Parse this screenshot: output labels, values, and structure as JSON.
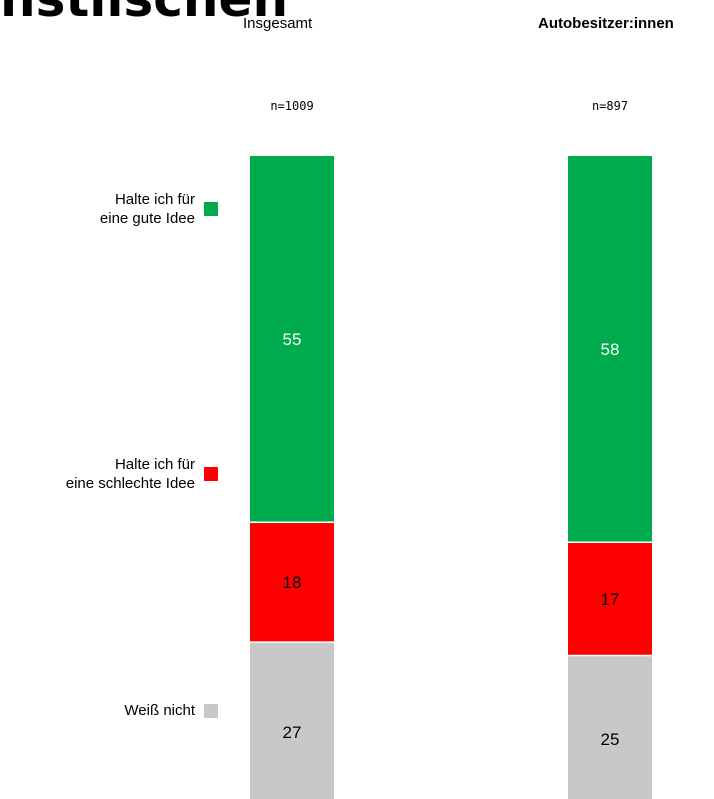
{
  "title": "nstiischen",
  "columns": [
    {
      "heading": "Insgesamt",
      "n": "n=1009"
    },
    {
      "heading": "Autobesitzer:innen",
      "n": "n=897"
    }
  ],
  "legend": [
    {
      "label": "Halte ich für\neine gute Idee",
      "color": "#00AB4E"
    },
    {
      "label": "Halte ich für\neine schlechte Idee",
      "color": "#FF0000"
    },
    {
      "label": "Weiß nicht",
      "color": "#C8C8C8"
    }
  ],
  "chart_data": {
    "type": "bar",
    "stacked": true,
    "categories": [
      "Insgesamt",
      "Autobesitzer:innen"
    ],
    "series": [
      {
        "name": "Halte ich für eine gute Idee",
        "values": [
          55,
          58
        ],
        "color": "#00AB4E",
        "label_color": "#ffffff"
      },
      {
        "name": "Halte ich für eine schlechte Idee",
        "values": [
          18,
          17
        ],
        "color": "#FF0000",
        "label_color": "#000000"
      },
      {
        "name": "Weiß nicht",
        "values": [
          27,
          25
        ],
        "color": "#C8C8C8",
        "label_color": "#000000"
      }
    ],
    "ylim": [
      0,
      100
    ]
  }
}
